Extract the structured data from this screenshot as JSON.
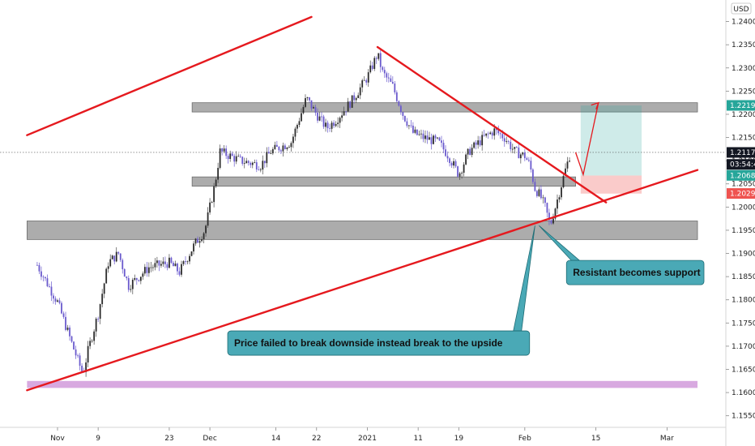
{
  "chart_data": {
    "type": "candlestick",
    "currency": "USD",
    "ylim": [
      1.1525,
      1.2415
    ],
    "y_ticks": [
      1.155,
      1.16,
      1.165,
      1.17,
      1.175,
      1.18,
      1.185,
      1.19,
      1.195,
      1.2,
      1.205,
      1.21,
      1.215,
      1.22,
      1.225,
      1.23,
      1.235,
      1.24
    ],
    "y_tick_labels": [
      "1.15500",
      "1.16000",
      "1.16500",
      "1.17000",
      "1.17500",
      "1.18000",
      "1.18500",
      "1.19000",
      "1.19500",
      "1.20000",
      "1.20500",
      "1.21000",
      "1.21500",
      "1.22000",
      "1.22500",
      "1.23000",
      "1.23500",
      "1.24000"
    ],
    "x_range_days": [
      -4,
      123
    ],
    "x_ticks": [
      {
        "day": 0,
        "label": "Nov"
      },
      {
        "day": 8,
        "label": "9"
      },
      {
        "day": 22,
        "label": "23"
      },
      {
        "day": 30,
        "label": "Dec"
      },
      {
        "day": 43,
        "label": "14"
      },
      {
        "day": 51,
        "label": "22"
      },
      {
        "day": 61,
        "label": "2021"
      },
      {
        "day": 71,
        "label": "11"
      },
      {
        "day": 79,
        "label": "19"
      },
      {
        "day": 92,
        "label": "Feb"
      },
      {
        "day": 106,
        "label": "15"
      },
      {
        "day": 120,
        "label": "Mar"
      }
    ],
    "ohlc_key_points": [
      {
        "day": -4,
        "price": 1.1875
      },
      {
        "day": 0,
        "price": 1.1795
      },
      {
        "day": 3,
        "price": 1.17
      },
      {
        "day": 5,
        "price": 1.164
      },
      {
        "day": 6,
        "price": 1.169
      },
      {
        "day": 8,
        "price": 1.177
      },
      {
        "day": 10,
        "price": 1.188
      },
      {
        "day": 12,
        "price": 1.19
      },
      {
        "day": 14,
        "price": 1.183
      },
      {
        "day": 18,
        "price": 1.187
      },
      {
        "day": 22,
        "price": 1.188
      },
      {
        "day": 24,
        "price": 1.186
      },
      {
        "day": 27,
        "price": 1.192
      },
      {
        "day": 29,
        "price": 1.195
      },
      {
        "day": 31,
        "price": 1.205
      },
      {
        "day": 32,
        "price": 1.212
      },
      {
        "day": 36,
        "price": 1.21
      },
      {
        "day": 40,
        "price": 1.209
      },
      {
        "day": 42,
        "price": 1.212
      },
      {
        "day": 46,
        "price": 1.214
      },
      {
        "day": 49,
        "price": 1.2235
      },
      {
        "day": 51,
        "price": 1.22
      },
      {
        "day": 53,
        "price": 1.217
      },
      {
        "day": 55,
        "price": 1.219
      },
      {
        "day": 58,
        "price": 1.223
      },
      {
        "day": 61,
        "price": 1.228
      },
      {
        "day": 63,
        "price": 1.233
      },
      {
        "day": 64,
        "price": 1.229
      },
      {
        "day": 66,
        "price": 1.226
      },
      {
        "day": 68,
        "price": 1.22
      },
      {
        "day": 70,
        "price": 1.216
      },
      {
        "day": 72,
        "price": 1.215
      },
      {
        "day": 75,
        "price": 1.214
      },
      {
        "day": 77,
        "price": 1.211
      },
      {
        "day": 79,
        "price": 1.207
      },
      {
        "day": 81,
        "price": 1.212
      },
      {
        "day": 84,
        "price": 1.215
      },
      {
        "day": 86,
        "price": 1.2165
      },
      {
        "day": 88,
        "price": 1.215
      },
      {
        "day": 90,
        "price": 1.212
      },
      {
        "day": 92,
        "price": 1.211
      },
      {
        "day": 93,
        "price": 1.209
      },
      {
        "day": 94,
        "price": 1.204
      },
      {
        "day": 95,
        "price": 1.2025
      },
      {
        "day": 96,
        "price": 1.2
      },
      {
        "day": 97,
        "price": 1.196
      },
      {
        "day": 98,
        "price": 1.2
      },
      {
        "day": 99,
        "price": 1.204
      },
      {
        "day": 100,
        "price": 1.208
      },
      {
        "day": 101,
        "price": 1.2118
      }
    ],
    "horizontal_zones": [
      {
        "x_from": 26.5,
        "x_to": 126,
        "y_low": 1.2205,
        "y_high": 1.2225,
        "color": "#9e9e9e"
      },
      {
        "x_from": 26.5,
        "x_to": 102,
        "y_low": 1.2045,
        "y_high": 1.2065,
        "color": "#9e9e9e"
      },
      {
        "x_from": -6,
        "x_to": 126,
        "y_low": 1.193,
        "y_high": 1.197,
        "color": "#9e9e9e"
      },
      {
        "x_from": -6,
        "x_to": 126,
        "y_low": 1.161,
        "y_high": 1.1625,
        "color": "#ce93d8"
      }
    ],
    "trendlines": [
      {
        "from": [
          -6,
          1.2155
        ],
        "to": [
          50,
          1.241
        ]
      },
      {
        "from": [
          -6,
          1.1605
        ],
        "to": [
          126,
          1.208
        ]
      },
      {
        "from": [
          63,
          1.2345
        ],
        "to": [
          108,
          1.201
        ]
      }
    ],
    "position": {
      "x_from": 103,
      "x_to": 115,
      "target_top": 1.2219,
      "entry": 1.2068,
      "stop": 1.2029
    },
    "projection_path": [
      [
        102,
        1.2118
      ],
      [
        103.5,
        1.207
      ],
      [
        106.5,
        1.2225
      ]
    ],
    "price_tags": [
      {
        "label": "1.22192",
        "price": 1.22192,
        "bg": "#26a69a",
        "fg": "#ffffff"
      },
      {
        "label": "1.21178",
        "price": 1.21178,
        "bg": "#131722",
        "fg": "#ffffff"
      },
      {
        "label": "03:54:47",
        "price": 1.2092,
        "bg": "#131722",
        "fg": "#ffffff"
      },
      {
        "label": "1.20683",
        "price": 1.20683,
        "bg": "#26a69a",
        "fg": "#ffffff"
      },
      {
        "label": "1.20293",
        "price": 1.20293,
        "bg": "#ef5350",
        "fg": "#ffffff"
      }
    ],
    "current_price": 1.21178,
    "annotations": [
      {
        "text": "Resistant becomes support",
        "box_day": 100.2,
        "box_price": 1.1885,
        "pointer_day": 94.8,
        "pointer_price": 1.196
      },
      {
        "text": "Price failed to break downside instead break to the upside",
        "box_day": 33.5,
        "box_price": 1.1733,
        "pointer_day": 94.0,
        "pointer_price": 1.196
      }
    ],
    "title": "",
    "xlabel": "",
    "ylabel": ""
  }
}
